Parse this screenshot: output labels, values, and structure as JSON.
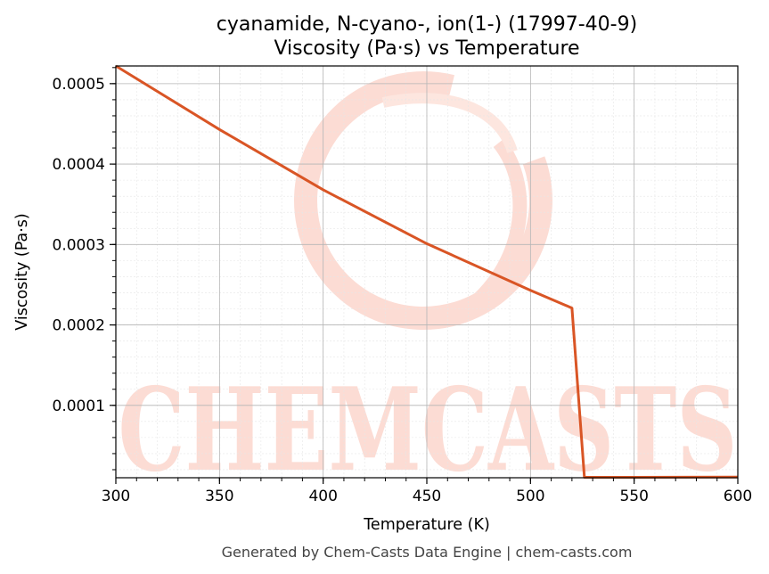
{
  "chart_data": {
    "type": "line",
    "title_line1": "cyanamide, N-cyano-, ion(1-) (17997-40-9)",
    "title_line2": "Viscosity (Pa·s) vs Temperature",
    "xlabel": "Temperature (K)",
    "ylabel": "Viscosity (Pa·s)",
    "xlim": [
      300,
      600
    ],
    "ylim": [
      1e-05,
      0.000522
    ],
    "xticks": [
      300,
      350,
      400,
      450,
      500,
      550,
      600
    ],
    "xtick_labels": [
      "300",
      "350",
      "400",
      "450",
      "500",
      "550",
      "600"
    ],
    "yticks": [
      0.0001,
      0.0002,
      0.0003,
      0.0004,
      0.0005
    ],
    "ytick_labels": [
      "0.0001",
      "0.0002",
      "0.0003",
      "0.0004",
      "0.0005"
    ],
    "grid": true,
    "line_color": "#d95525",
    "series": [
      {
        "x": [
          300,
          350,
          400,
          450,
          500,
          520,
          526,
          550,
          600
        ],
        "y": [
          0.000522,
          0.000443,
          0.000368,
          0.000301,
          0.000243,
          0.000221,
          1.05e-05,
          1.06e-05,
          1.08e-05
        ]
      }
    ]
  },
  "watermark": {
    "text": "CHEMCASTS",
    "color": "#fcdcd4"
  },
  "footer": "Generated by Chem-Casts Data Engine | chem-casts.com"
}
